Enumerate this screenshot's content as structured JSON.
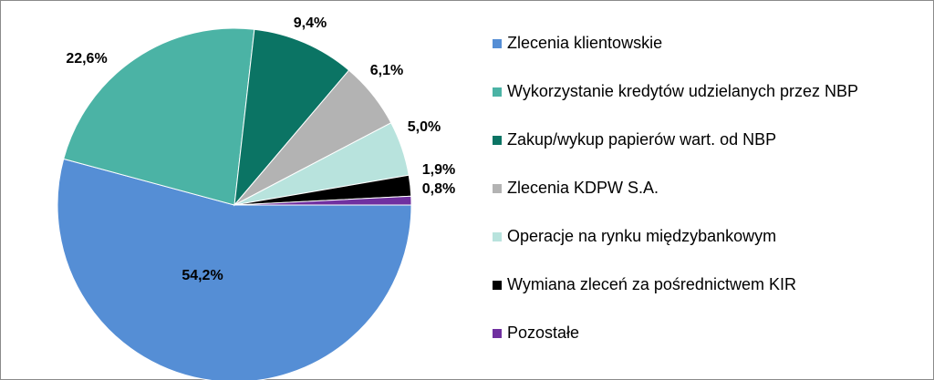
{
  "chart_data": {
    "type": "pie",
    "title": "",
    "start_angle_deg": 0,
    "direction": "clockwise",
    "slices": [
      {
        "label": "Zlecenia klientowskie",
        "value": 54.2,
        "value_label": "54,2%",
        "color": "#558ed5"
      },
      {
        "label": "Wykorzystanie kredytów udzielanych przez NBP",
        "value": 22.6,
        "value_label": "22,6%",
        "color": "#4bb3a5"
      },
      {
        "label": "Zakup/wykup papierów wart. od NBP",
        "value": 9.4,
        "value_label": "9,4%",
        "color": "#0b7464"
      },
      {
        "label": "Zlecenia KDPW S.A.",
        "value": 6.1,
        "value_label": "6,1%",
        "color": "#b3b3b3"
      },
      {
        "label": "Operacje na rynku międzybankowym",
        "value": 5.0,
        "value_label": "5,0%",
        "color": "#b8e3dd"
      },
      {
        "label": "Wymiana zleceń za pośrednictwem KIR",
        "value": 1.9,
        "value_label": "1,9%",
        "color": "#000000"
      },
      {
        "label": "Pozostałe",
        "value": 0.8,
        "value_label": "0,8%",
        "color": "#7030a0"
      }
    ],
    "legend_position": "right"
  }
}
